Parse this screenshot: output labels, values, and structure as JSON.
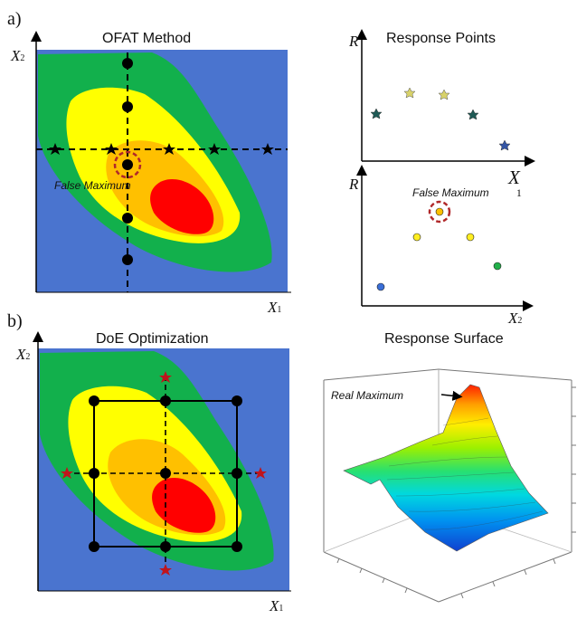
{
  "panels": {
    "a_label": "a)",
    "b_label": "b)"
  },
  "ofat": {
    "title": "OFAT Method",
    "x_axis": "X",
    "x_sub": "1",
    "y_axis": "X",
    "y_sub": "2",
    "annotation": "False Maximum"
  },
  "response_points": {
    "title": "Response Points",
    "top_y_axis": "R",
    "top_x_axis": "X",
    "top_x_sub": "1",
    "bottom_y_axis": "R",
    "bottom_x_axis": "X",
    "bottom_x_sub": "2",
    "annotation": "False Maximum"
  },
  "doe": {
    "title": "DoE Optimization",
    "x_axis": "X",
    "x_sub": "1",
    "y_axis": "X",
    "y_sub": "2"
  },
  "response_surface": {
    "title": "Response Surface",
    "annotation": "Real Maximum"
  },
  "colors": {
    "background": "#4a74cf",
    "green": "#12b04c",
    "yellow": "#ffff00",
    "orange": "#ffc000",
    "red": "#ff0000",
    "star_red": "#c0141c",
    "dashed_circle": "#b0282a"
  }
}
